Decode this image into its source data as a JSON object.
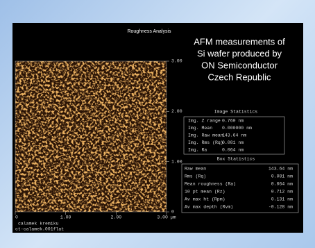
{
  "window": {
    "title": "Roughness Analysis"
  },
  "caption": {
    "lines": [
      "AFM measurements of",
      "Si wafer produced by",
      "ON Semiconductor",
      "Czech Republic"
    ]
  },
  "image": {
    "y_axis": [
      "3.00",
      "2.00",
      "1.00",
      "0"
    ],
    "x_axis": [
      "0",
      "1.00",
      "2.00",
      "3.00 µm"
    ],
    "labels": [
      "calamek kremiku",
      "ct-calamek.001flat"
    ]
  },
  "image_statistics": {
    "title": "Image Statistics",
    "rows": [
      [
        "Img. Z range",
        "0.760 nm"
      ],
      [
        "Img. Mean",
        "0.000000 nm"
      ],
      [
        "Img. Raw mean",
        "143.64 nm"
      ],
      [
        "Img. Rms (Rq)",
        "0.081 nm"
      ],
      [
        "Img. Ra",
        "0.064 nm"
      ]
    ]
  },
  "box_statistics": {
    "title": "Box Statistics",
    "rows": [
      [
        "Raw mean",
        "143.64 nm"
      ],
      [
        "Rms (Rq)",
        "0.081 nm"
      ],
      [
        "Mean roughness (Ra)",
        "0.064 nm"
      ],
      [
        "10 pt mean (Rz)",
        "0.712 nm"
      ],
      [
        "Av max ht (Rpm)",
        "0.131 nm"
      ],
      [
        "Av max depth (Rvm)",
        "-0.128 nm"
      ]
    ]
  }
}
